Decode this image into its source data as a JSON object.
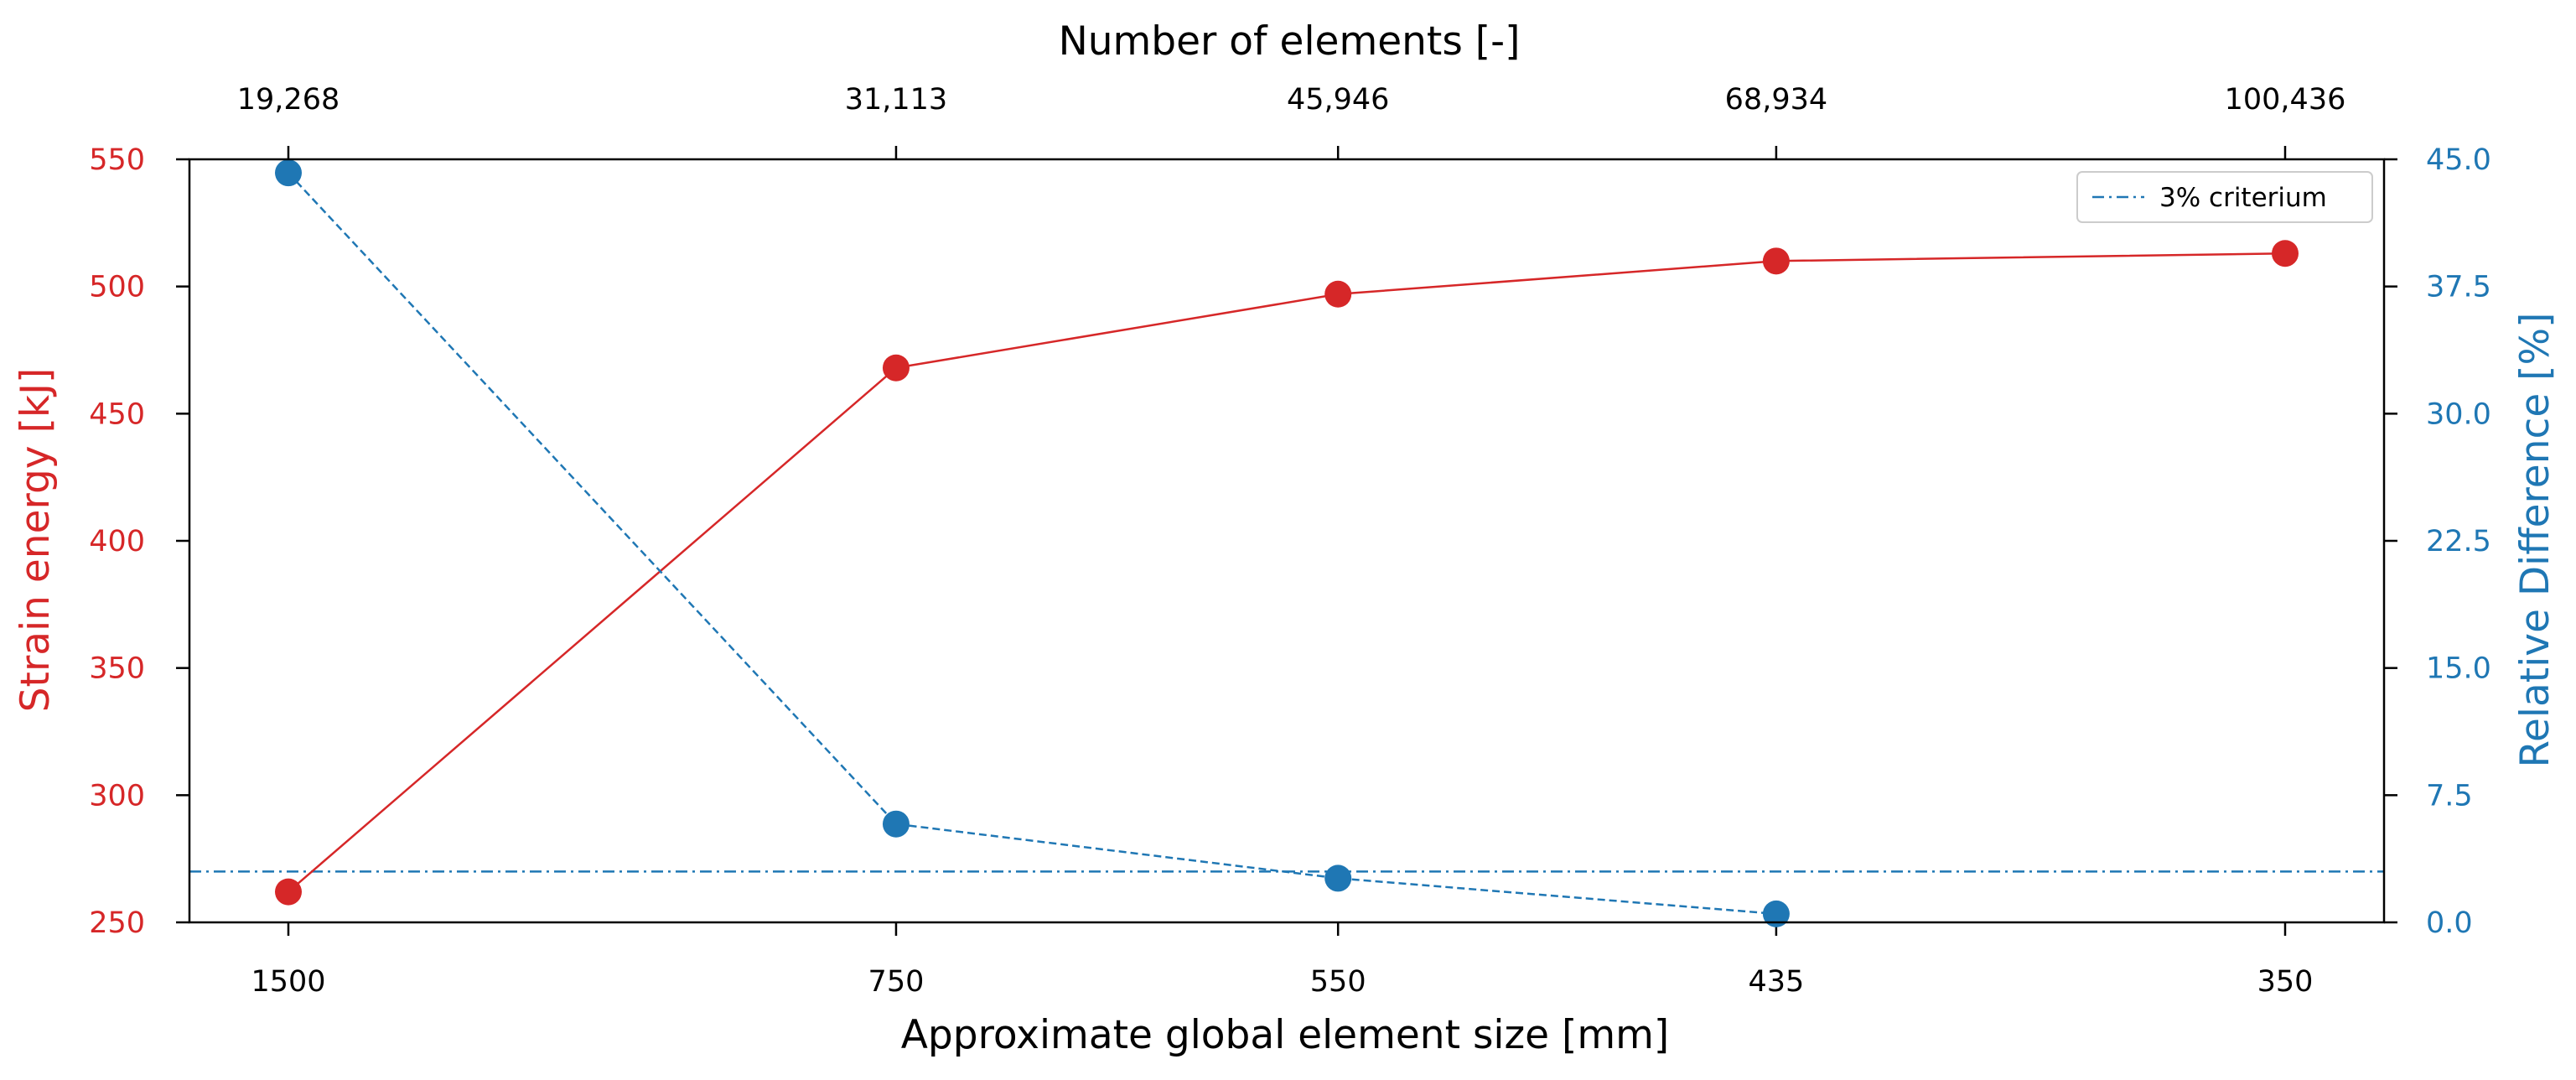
{
  "chart_data": {
    "type": "line",
    "x_bottom": {
      "label": "Approximate global element size [mm]",
      "values": [
        1500,
        750,
        550,
        435,
        350
      ],
      "tick_labels": [
        "1500",
        "750",
        "550",
        "435",
        "350"
      ],
      "scale": "reciprocal"
    },
    "x_top": {
      "label": "Number of elements [-]",
      "tick_labels": [
        "19,268",
        "31,113",
        "45,946",
        "68,934",
        "100,436"
      ]
    },
    "y_left": {
      "label": "Strain energy [kJ]",
      "range": [
        250,
        550
      ],
      "ticks": [
        250,
        300,
        350,
        400,
        450,
        500,
        550
      ],
      "tick_labels": [
        "250",
        "300",
        "350",
        "400",
        "450",
        "500",
        "550"
      ],
      "color": "#d62728"
    },
    "y_right": {
      "label": "Relative Difference [%]",
      "range": [
        0,
        45
      ],
      "ticks": [
        0,
        7.5,
        15,
        22.5,
        30,
        37.5,
        45
      ],
      "tick_labels": [
        "0.0",
        "7.5",
        "15.0",
        "22.5",
        "30.0",
        "37.5",
        "45.0"
      ],
      "color": "#1f77b4"
    },
    "series": [
      {
        "axis": "left",
        "color": "#d62728",
        "line_style": "solid",
        "marker": "circle",
        "values": [
          262,
          468,
          497,
          510,
          513
        ]
      },
      {
        "axis": "right",
        "color": "#1f77b4",
        "line_style": "dashed",
        "marker": "circle",
        "values": [
          44.2,
          5.8,
          2.6,
          0.5
        ]
      }
    ],
    "reference_lines": [
      {
        "name": "3% criterium",
        "axis": "right",
        "value": 3,
        "line_style": "dashdot",
        "color": "#1f77b4"
      }
    ],
    "legend": {
      "position": "top-right",
      "entries": [
        "3% criterium"
      ]
    },
    "grid": false
  }
}
